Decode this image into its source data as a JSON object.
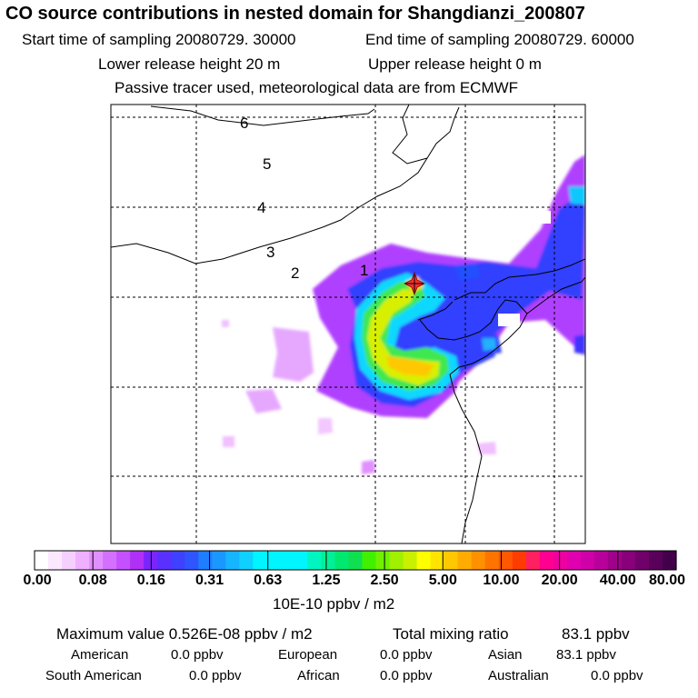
{
  "header": {
    "title": "CO  source contributions in nested domain for Shangdianzi_200807",
    "start_time_label": "Start time of sampling 20080729. 30000",
    "end_time_label": "End time of sampling 20080729. 60000",
    "lower_release_label": "Lower release height   20 m",
    "upper_release_label": "Upper release height    0 m",
    "tracer_note": "Passive tracer used, meteorological data are from ECMWF"
  },
  "chart_data": {
    "type": "heatmap",
    "title": "CO  source contributions in nested domain for Shangdianzi_200807",
    "units": "10E-10 ppbv / m2",
    "colorbar_ticks": [
      "0.00",
      "0.08",
      "0.16",
      "0.31",
      "0.63",
      "1.25",
      "2.50",
      "5.00",
      "10.00",
      "20.00",
      "40.00",
      "80.00"
    ],
    "colorbar_colors": [
      "#ffffff",
      "#fbe8ff",
      "#f5d0ff",
      "#eeb0ff",
      "#e290ff",
      "#d470ff",
      "#c450ff",
      "#b030f5",
      "#7a25ff",
      "#5a30ff",
      "#4040ff",
      "#2f55ff",
      "#1f7dff",
      "#1a98ff",
      "#15b5ff",
      "#10d0ff",
      "#00f5ff",
      "#00f5ff",
      "#00f5ff",
      "#00f5ff",
      "#00f5c0",
      "#00f098",
      "#00e870",
      "#10e050",
      "#40f000",
      "#70f000",
      "#a0f000",
      "#c8f000",
      "#ffff00",
      "#ffe400",
      "#ffc800",
      "#ffac00",
      "#ff9000",
      "#ff7400",
      "#ff5800",
      "#ff3c00",
      "#ff2060",
      "#ff0090",
      "#f000a0",
      "#e000b0",
      "#d000a8",
      "#b8009a",
      "#a0008a",
      "#88007a",
      "#70006a",
      "#58005a",
      "#42004a"
    ],
    "contour_labels": [
      "1",
      "2",
      "3",
      "4",
      "5",
      "6"
    ],
    "receptor_marker": "Shangdianzi",
    "grid": true
  },
  "stats": {
    "max_value_label": "Maximum value  0.526E-08 ppbv / m2",
    "total_mixing_label": "Total mixing ratio",
    "total_mixing_value": "83.1 ppbv"
  },
  "regions": [
    {
      "name": "American",
      "value": "0.0 ppbv"
    },
    {
      "name": "European",
      "value": "0.0 ppbv"
    },
    {
      "name": "Asian",
      "value": "83.1 ppbv"
    },
    {
      "name": "South American",
      "value": "0.0 ppbv"
    },
    {
      "name": "African",
      "value": "0.0 ppbv"
    },
    {
      "name": "Australian",
      "value": "0.0 ppbv"
    }
  ]
}
